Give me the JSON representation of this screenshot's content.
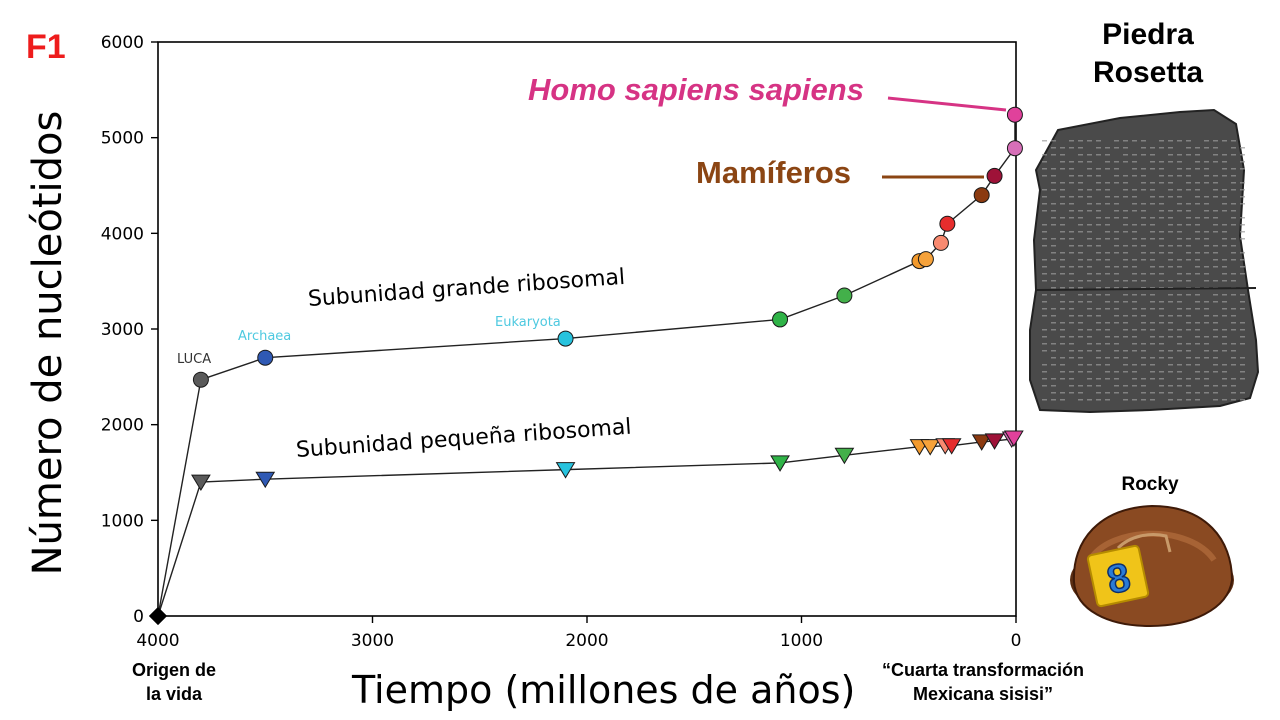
{
  "panel_label": "F1",
  "annotations": {
    "origin": [
      "Origen de",
      "la vida"
    ],
    "cuarta": [
      "“Cuarta transformación",
      "Mexicana sisisi”"
    ],
    "homo": "Homo sapiens sapiens",
    "mamiferos": "Mamíferos",
    "sub_large": "Subunidad grande ribosomal",
    "sub_small": "Subunidad pequeña ribosomal",
    "luca": "LUCA",
    "archaea": "Archaea",
    "eukaryota": "Eukaryota"
  },
  "images": {
    "piedra_title": [
      "Piedra",
      "Rosetta"
    ],
    "rocky_label": "Rocky",
    "rocky_number": "8"
  },
  "chart_data": {
    "type": "line",
    "title": "",
    "xlabel": "Tiempo (millones de años)",
    "ylabel": "Número de nucleótidos",
    "xlim": [
      4000,
      0
    ],
    "ylim": [
      0,
      6000
    ],
    "x_ticks": [
      4000,
      3000,
      2000,
      1000,
      0
    ],
    "y_ticks": [
      0,
      1000,
      2000,
      3000,
      4000,
      5000,
      6000
    ],
    "grid": false,
    "series": [
      {
        "name": "Subunidad grande ribosomal",
        "marker": "circle",
        "points": [
          {
            "x": 4000,
            "y": 0,
            "color": "#000000"
          },
          {
            "x": 3800,
            "y": 2470,
            "color": "#5a5a5a"
          },
          {
            "x": 3500,
            "y": 2700,
            "color": "#2f59b4"
          },
          {
            "x": 2100,
            "y": 2900,
            "color": "#27c3de"
          },
          {
            "x": 1100,
            "y": 3100,
            "color": "#2fb347"
          },
          {
            "x": 800,
            "y": 3350,
            "color": "#43b04a"
          },
          {
            "x": 450,
            "y": 3710,
            "color": "#f39a2d"
          },
          {
            "x": 420,
            "y": 3730,
            "color": "#f6a23a"
          },
          {
            "x": 350,
            "y": 3900,
            "color": "#f98a70"
          },
          {
            "x": 320,
            "y": 4100,
            "color": "#e62d2d"
          },
          {
            "x": 160,
            "y": 4400,
            "color": "#8b3a10"
          },
          {
            "x": 100,
            "y": 4600,
            "color": "#9e1238"
          },
          {
            "x": 5,
            "y": 4890,
            "color": "#d76fb8"
          },
          {
            "x": 5,
            "y": 5240,
            "color": "#e0419b"
          }
        ]
      },
      {
        "name": "Subunidad pequeña ribosomal",
        "marker": "triangle-down",
        "points": [
          {
            "x": 4000,
            "y": 0,
            "color": "#000000"
          },
          {
            "x": 3800,
            "y": 1400,
            "color": "#5a5a5a"
          },
          {
            "x": 3500,
            "y": 1430,
            "color": "#2f59b4"
          },
          {
            "x": 2100,
            "y": 1530,
            "color": "#27c3de"
          },
          {
            "x": 1100,
            "y": 1600,
            "color": "#2fb347"
          },
          {
            "x": 800,
            "y": 1680,
            "color": "#43b04a"
          },
          {
            "x": 450,
            "y": 1770,
            "color": "#f39a2d"
          },
          {
            "x": 400,
            "y": 1770,
            "color": "#f6a23a"
          },
          {
            "x": 330,
            "y": 1780,
            "color": "#f98a70"
          },
          {
            "x": 300,
            "y": 1780,
            "color": "#e62d2d"
          },
          {
            "x": 160,
            "y": 1820,
            "color": "#8b3a10"
          },
          {
            "x": 100,
            "y": 1830,
            "color": "#9e1238"
          },
          {
            "x": 20,
            "y": 1850,
            "color": "#d76fb8"
          },
          {
            "x": 10,
            "y": 1860,
            "color": "#e0419b"
          }
        ]
      }
    ]
  },
  "colors": {
    "panel_label": "#ee1c1c",
    "homo": "#d63384",
    "mamiferos": "#8b4513",
    "archaea_eukaryota_labels": "#4ec9e0"
  }
}
